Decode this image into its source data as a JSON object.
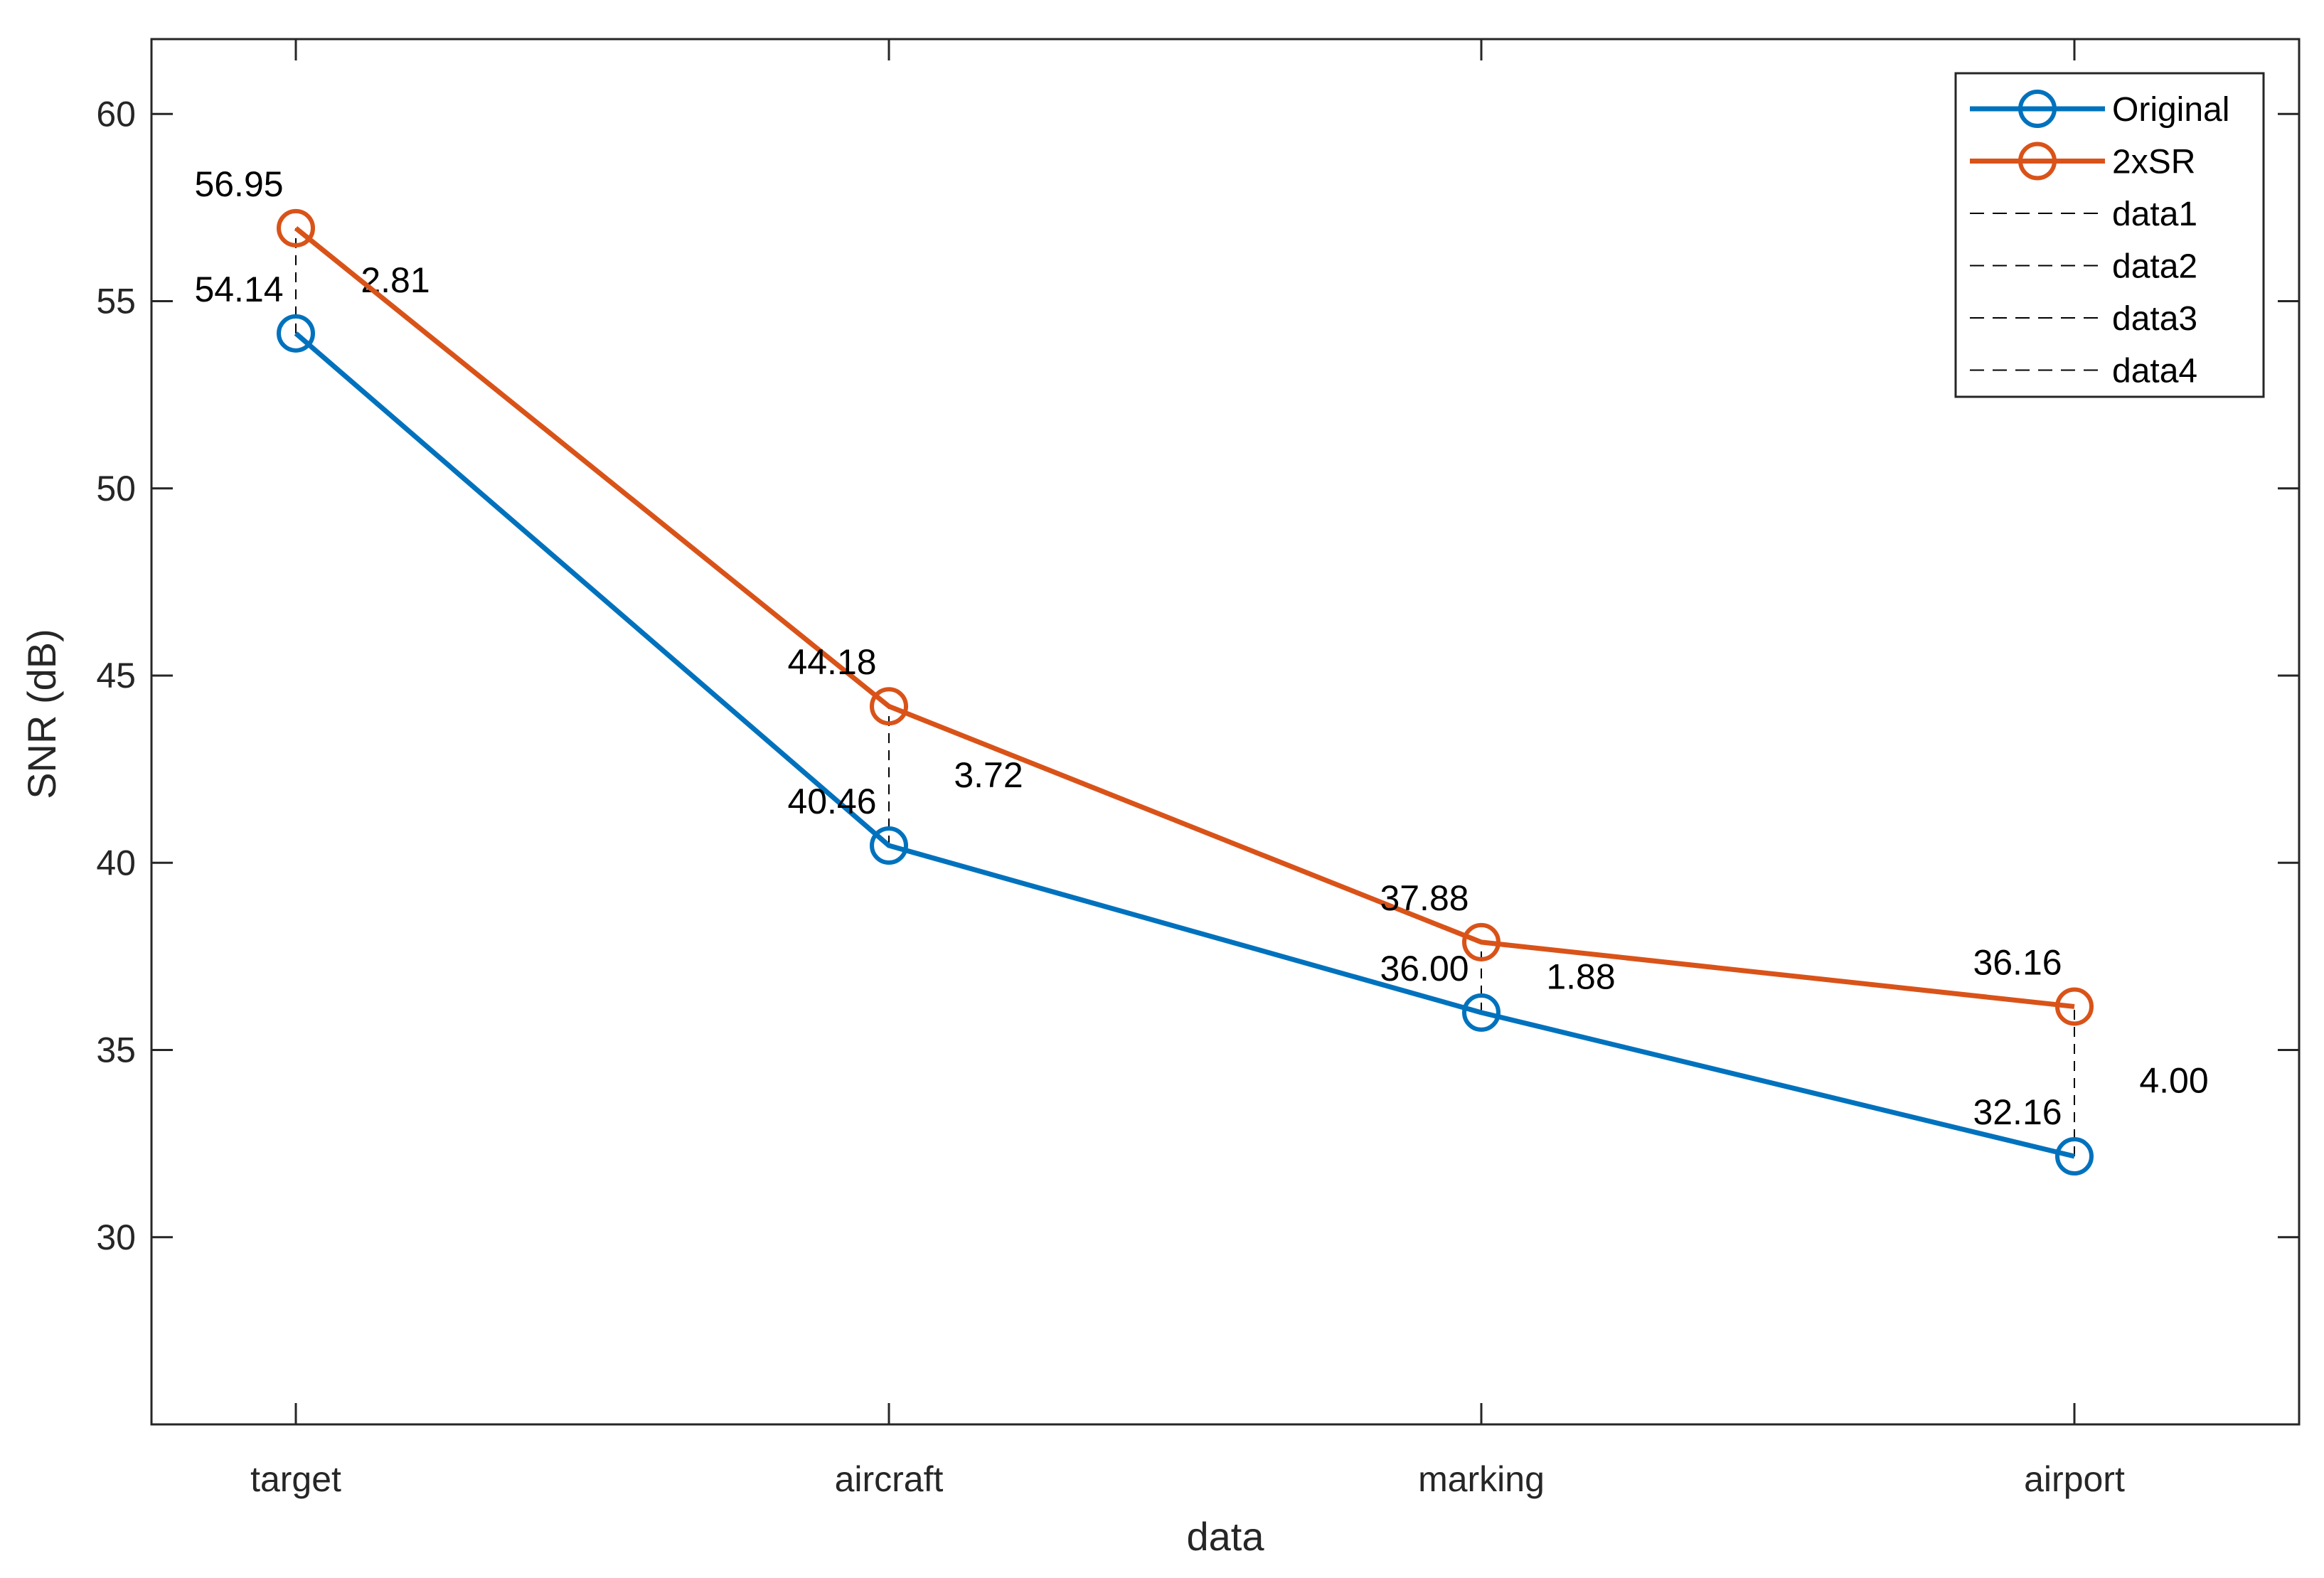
{
  "chart_data": {
    "type": "line",
    "xlabel": "data",
    "ylabel": "SNR (dB)",
    "categories": [
      "target",
      "aircraft",
      "marking",
      "airport"
    ],
    "ylim": [
      25,
      62
    ],
    "yticks": [
      30,
      35,
      40,
      45,
      50,
      55,
      60
    ],
    "ytick_labels": [
      "30",
      "35",
      "40",
      "45",
      "50",
      "55",
      "60"
    ],
    "grid": false,
    "legend_position": "top-right",
    "series": [
      {
        "name": "Original",
        "values": [
          54.14,
          40.46,
          36.0,
          32.16
        ],
        "labels": [
          "54.14",
          "40.46",
          "36.00",
          "32.16"
        ],
        "color": "#0072BD",
        "marker": "circle"
      },
      {
        "name": "2xSR",
        "values": [
          56.95,
          44.18,
          37.88,
          36.16
        ],
        "labels": [
          "56.95",
          "44.18",
          "37.88",
          "36.16"
        ],
        "color": "#D95319",
        "marker": "circle"
      }
    ],
    "difference_lines": [
      {
        "name": "data1",
        "category": "target",
        "from": 54.14,
        "to": 56.95,
        "label": "2.81"
      },
      {
        "name": "data2",
        "category": "aircraft",
        "from": 40.46,
        "to": 44.18,
        "label": "3.72"
      },
      {
        "name": "data3",
        "category": "marking",
        "from": 36.0,
        "to": 37.88,
        "label": "1.88"
      },
      {
        "name": "data4",
        "category": "airport",
        "from": 32.16,
        "to": 36.16,
        "label": "4.00"
      }
    ],
    "difference_line_color": "#000000"
  }
}
